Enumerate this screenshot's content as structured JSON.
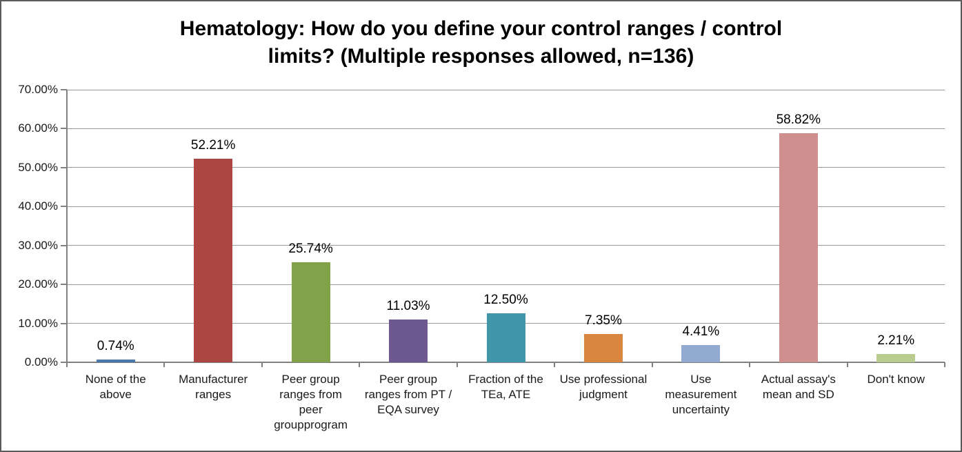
{
  "window": {
    "background_color": "#ffffff",
    "border_color": "#5a5a5a"
  },
  "chart_data": {
    "type": "bar",
    "title": "Hematology: How do you define your control ranges / control limits? (Multiple responses allowed, n=136)",
    "n": 136,
    "categories": [
      "None of the above",
      "Manufacturer ranges",
      "Peer group ranges from peer groupprogram",
      "Peer group ranges from PT / EQA survey",
      "Fraction of the TEa, ATE",
      "Use professional judgment",
      "Use measurement uncertainty",
      "Actual assay's mean and SD",
      "Don't know"
    ],
    "category_display": [
      "None of the\nabove",
      "Manufacturer\nranges",
      "Peer group\nranges from\npeer\ngroupprogram",
      "Peer group\nranges from PT /\nEQA survey",
      "Fraction of the\nTEa, ATE",
      "Use professional\njudgment",
      "Use\nmeasurement\nuncertainty",
      "Actual assay's\nmean and SD",
      "Don't know"
    ],
    "values": [
      0.74,
      52.21,
      25.74,
      11.03,
      12.5,
      7.35,
      4.41,
      58.82,
      2.21
    ],
    "value_labels": [
      "0.74%",
      "52.21%",
      "25.74%",
      "11.03%",
      "12.50%",
      "7.35%",
      "4.41%",
      "58.82%",
      "2.21%"
    ],
    "bar_colors": [
      "#4a77ac",
      "#ac4744",
      "#82a24a",
      "#6e5891",
      "#4296a9",
      "#db8640",
      "#92aacf",
      "#cf8f8e",
      "#b9cc90"
    ],
    "ylim": [
      0,
      70
    ],
    "y_tick_step": 10,
    "y_tick_labels": [
      "0.00%",
      "10.00%",
      "20.00%",
      "30.00%",
      "40.00%",
      "50.00%",
      "60.00%",
      "70.00%"
    ],
    "xlabel": "",
    "ylabel": "",
    "grid": true,
    "legend": "none",
    "gridline_color": "#999999",
    "axis_color": "#808080",
    "text_color": "#1a1a1a"
  }
}
